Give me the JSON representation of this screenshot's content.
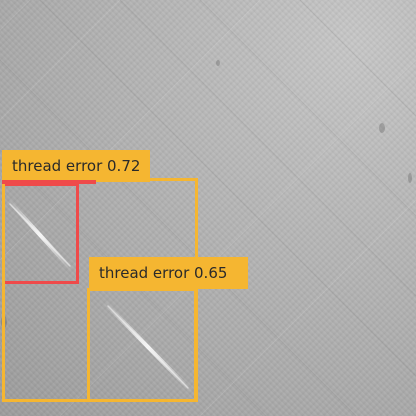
{
  "detections": [
    {
      "label": "thread error 0.72",
      "color": "#ef4a4a"
    },
    {
      "label": "",
      "color": "#f5b631"
    },
    {
      "label": "thread error 0.65",
      "color": "#f5b631"
    }
  ],
  "label_color": "#f5b631"
}
